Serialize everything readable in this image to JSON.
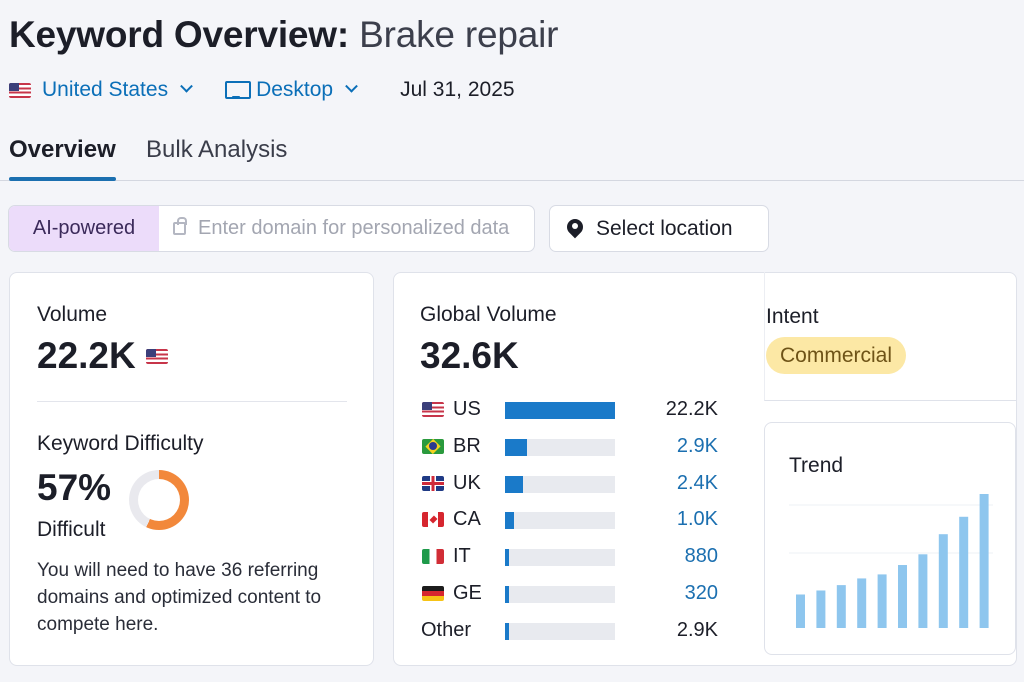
{
  "header": {
    "title_prefix": "Keyword Overview:",
    "keyword": "Brake repair",
    "country": "United States",
    "device": "Desktop",
    "date": "Jul 31, 2025"
  },
  "tabs": [
    "Overview",
    "Bulk Analysis"
  ],
  "ai_search": {
    "badge": "AI-powered",
    "placeholder": "Enter domain for personalized data",
    "value": ""
  },
  "location_button": "Select location",
  "volume": {
    "label": "Volume",
    "value": "22.2K"
  },
  "keyword_difficulty": {
    "label": "Keyword Difficulty",
    "value": "57%",
    "percent": 57,
    "level": "Difficult",
    "description": "You will need to have 36 referring domains and optimized content to compete here.",
    "color": "#f2883b"
  },
  "global_volume": {
    "label": "Global Volume",
    "value": "32.6K",
    "countries": [
      {
        "code": "US",
        "value": "22.2K",
        "fraction": 1.0,
        "value_color": "#1c1e28",
        "flag": "flag-us"
      },
      {
        "code": "BR",
        "value": "2.9K",
        "fraction": 0.2,
        "value_color": "#1b6fb0",
        "flag": "flag-br"
      },
      {
        "code": "UK",
        "value": "2.4K",
        "fraction": 0.16,
        "value_color": "#1b6fb0",
        "flag": "flag-uk"
      },
      {
        "code": "CA",
        "value": "1.0K",
        "fraction": 0.08,
        "value_color": "#1b6fb0",
        "flag": "flag-ca"
      },
      {
        "code": "IT",
        "value": "880",
        "fraction": 0.04,
        "value_color": "#1b6fb0",
        "flag": "flag-it"
      },
      {
        "code": "GE",
        "value": "320",
        "fraction": 0.025,
        "value_color": "#1b6fb0",
        "flag": "flag-ge"
      },
      {
        "code": "Other",
        "value": "2.9K",
        "fraction": 0.025,
        "value_color": "#1c1e28",
        "flag": ""
      }
    ]
  },
  "intent": {
    "label": "Intent",
    "value": "Commercial"
  },
  "trend": {
    "label": "Trend",
    "values": [
      0.25,
      0.28,
      0.32,
      0.37,
      0.4,
      0.47,
      0.55,
      0.7,
      0.83,
      1.0
    ],
    "bar_color": "#8ec6ee"
  }
}
